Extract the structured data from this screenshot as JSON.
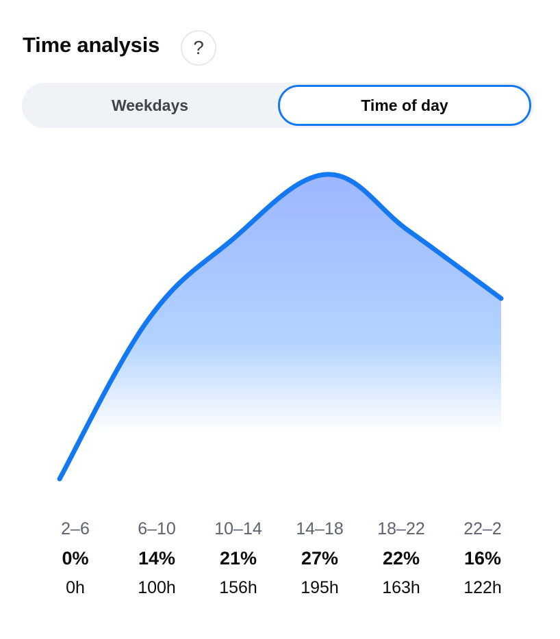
{
  "header": {
    "title": "Time analysis",
    "help_icon_text": "?"
  },
  "tabs": {
    "weekdays": "Weekdays",
    "time_of_day": "Time of day",
    "selected": "time_of_day"
  },
  "colors": {
    "accent": "#1479f0",
    "fill_top": "#9db6ff",
    "fill_bottom": "#ffffff"
  },
  "chart_data": {
    "type": "area",
    "categories": [
      "2–6",
      "6–10",
      "10–14",
      "14–18",
      "18–22",
      "22–2"
    ],
    "values": [
      0,
      14,
      21,
      27,
      22,
      16
    ],
    "hours": [
      "0h",
      "100h",
      "156h",
      "195h",
      "163h",
      "122h"
    ],
    "percent_labels": [
      "0%",
      "14%",
      "21%",
      "27%",
      "22%",
      "16%"
    ],
    "ylim": [
      0,
      27
    ],
    "grid": false
  }
}
